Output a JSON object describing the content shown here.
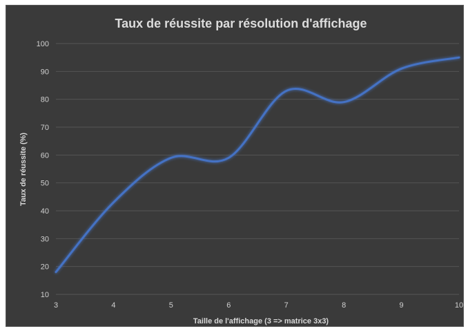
{
  "chart_data": {
    "type": "line",
    "title": "Taux de réussite par résolution d'affichage",
    "xlabel": "Taille de l'affichage (3 => matrice 3x3)",
    "ylabel": "Taux de réussite (%)",
    "xlim": [
      3,
      10
    ],
    "ylim": [
      10,
      100
    ],
    "x_ticks": [
      "3",
      "4",
      "5",
      "6",
      "7",
      "8",
      "9",
      "10"
    ],
    "y_ticks": [
      "10",
      "20",
      "30",
      "40",
      "50",
      "60",
      "70",
      "80",
      "90",
      "100"
    ],
    "grid": "horizontal",
    "smooth": true,
    "series": [
      {
        "x": [
          3,
          4,
          5,
          6,
          7,
          8,
          9,
          10
        ],
        "values": [
          18,
          43,
          59,
          59,
          83,
          79,
          91,
          95
        ],
        "color": "#4472c4"
      }
    ],
    "background": "#3a3a3a"
  }
}
